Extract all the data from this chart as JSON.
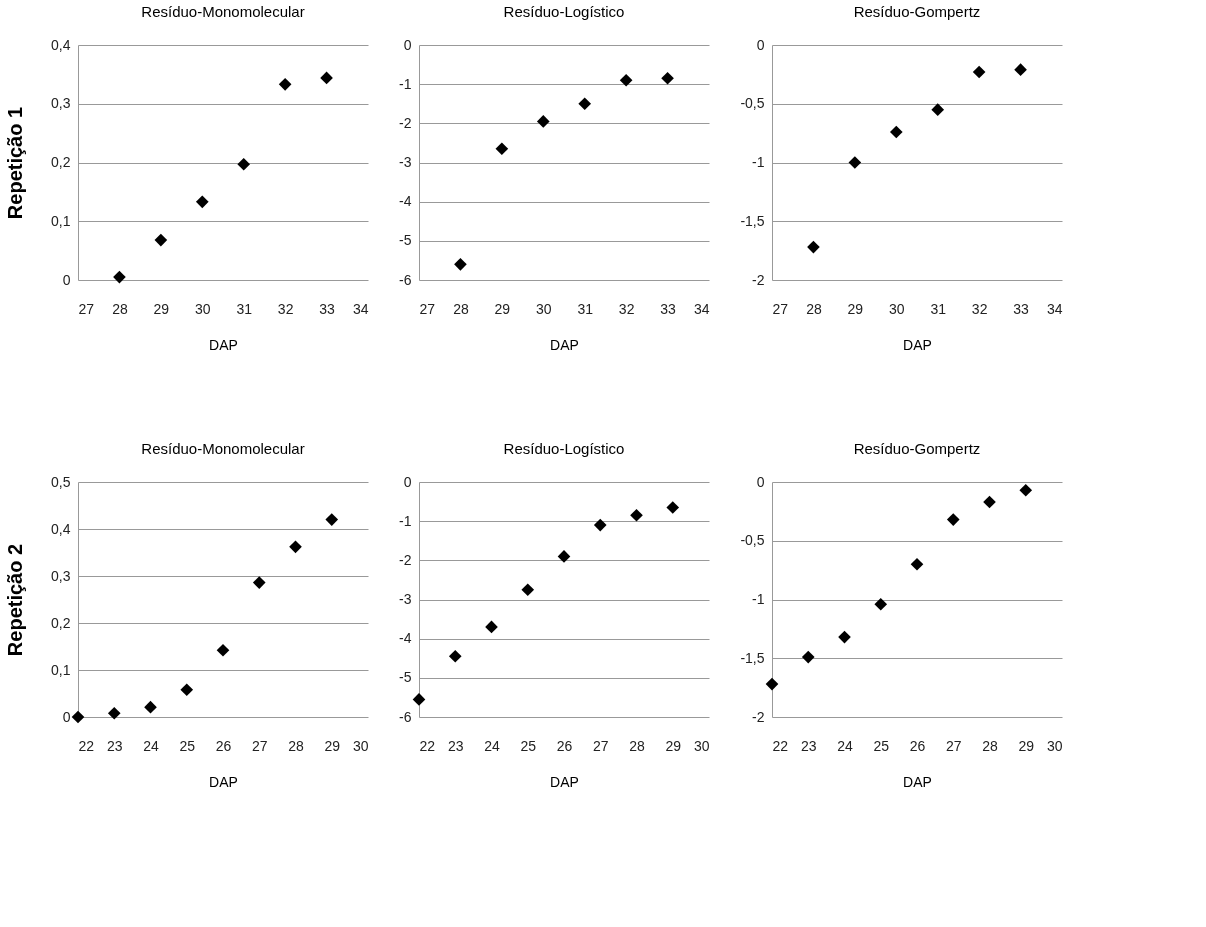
{
  "chart_data": [
    {
      "type": "scatter",
      "title": "Resíduo-Monomolecular",
      "xlabel": "DAP",
      "ylabel": "Repetição 1",
      "x": [
        28,
        29,
        30,
        31,
        32,
        33
      ],
      "series": [
        {
          "color": "#000000",
          "values": [
            0.005,
            0.068,
            0.133,
            0.197,
            0.333,
            0.344
          ]
        }
      ],
      "xlim": [
        27,
        34
      ],
      "xticks": [
        27,
        28,
        29,
        30,
        31,
        32,
        33,
        34
      ],
      "ylim": [
        0,
        0.4
      ],
      "yticks": [
        0,
        {
          "value": 0.1,
          "label": "0,1"
        },
        {
          "value": 0.2,
          "label": "0,2"
        },
        {
          "value": 0.3,
          "label": "0,3"
        },
        {
          "value": 0.4,
          "label": "0,4"
        }
      ],
      "grid": "y",
      "marker": "diamond"
    },
    {
      "type": "scatter",
      "title": "Resíduo-Logístico",
      "xlabel": "DAP",
      "x": [
        28,
        29,
        30,
        31,
        32,
        33
      ],
      "series": [
        {
          "color": "#000000",
          "values": [
            -5.6,
            -2.65,
            -1.95,
            -1.5,
            -0.9,
            -0.85
          ]
        }
      ],
      "xlim": [
        27,
        34
      ],
      "xticks": [
        27,
        28,
        29,
        30,
        31,
        32,
        33,
        34
      ],
      "ylim": [
        -6,
        0
      ],
      "yticks": [
        -6,
        -5,
        -4,
        -3,
        -2,
        -1,
        0
      ],
      "grid": "y",
      "marker": "diamond"
    },
    {
      "type": "scatter",
      "title": "Resíduo-Gompertz",
      "xlabel": "DAP",
      "x": [
        28,
        29,
        30,
        31,
        32,
        33
      ],
      "series": [
        {
          "color": "#000000",
          "values": [
            -1.72,
            -1.0,
            -0.74,
            -0.55,
            -0.23,
            -0.21
          ]
        }
      ],
      "xlim": [
        27,
        34
      ],
      "xticks": [
        27,
        28,
        29,
        30,
        31,
        32,
        33,
        34
      ],
      "ylim": [
        -2,
        0
      ],
      "yticks": [
        -2,
        {
          "value": -1.5,
          "label": "-1,5"
        },
        -1,
        {
          "value": -0.5,
          "label": "-0,5"
        },
        0
      ],
      "grid": "y",
      "marker": "diamond"
    },
    {
      "type": "scatter",
      "title": "Resíduo-Monomolecular",
      "xlabel": "DAP",
      "ylabel": "Repetição 2",
      "x": [
        22,
        23,
        24,
        25,
        26,
        27,
        28,
        29
      ],
      "series": [
        {
          "color": "#000000",
          "values": [
            0.0,
            0.008,
            0.021,
            0.058,
            0.142,
            0.286,
            0.362,
            0.42
          ]
        }
      ],
      "xlim": [
        22,
        30
      ],
      "xticks": [
        22,
        23,
        24,
        25,
        26,
        27,
        28,
        29,
        30
      ],
      "ylim": [
        0,
        0.5
      ],
      "yticks": [
        0,
        {
          "value": 0.1,
          "label": "0,1"
        },
        {
          "value": 0.2,
          "label": "0,2"
        },
        {
          "value": 0.3,
          "label": "0,3"
        },
        {
          "value": 0.4,
          "label": "0,4"
        },
        {
          "value": 0.5,
          "label": "0,5"
        }
      ],
      "grid": "y",
      "marker": "diamond"
    },
    {
      "type": "scatter",
      "title": "Resíduo-Logístico",
      "xlabel": "DAP",
      "x": [
        22,
        23,
        24,
        25,
        26,
        27,
        28,
        29
      ],
      "series": [
        {
          "color": "#000000",
          "values": [
            -5.55,
            -4.45,
            -3.7,
            -2.75,
            -1.9,
            -1.1,
            -0.85,
            -0.65
          ]
        }
      ],
      "xlim": [
        22,
        30
      ],
      "xticks": [
        22,
        23,
        24,
        25,
        26,
        27,
        28,
        29,
        30
      ],
      "ylim": [
        -6,
        0
      ],
      "yticks": [
        -6,
        -5,
        -4,
        -3,
        -2,
        -1,
        0
      ],
      "grid": "y",
      "marker": "diamond"
    },
    {
      "type": "scatter",
      "title": "Resíduo-Gompertz",
      "xlabel": "DAP",
      "x": [
        22,
        23,
        24,
        25,
        26,
        27,
        28,
        29
      ],
      "series": [
        {
          "color": "#000000",
          "values": [
            -1.72,
            -1.49,
            -1.32,
            -1.04,
            -0.7,
            -0.32,
            -0.17,
            -0.07
          ]
        }
      ],
      "xlim": [
        22,
        30
      ],
      "xticks": [
        22,
        23,
        24,
        25,
        26,
        27,
        28,
        29,
        30
      ],
      "ylim": [
        -2,
        0
      ],
      "yticks": [
        -2,
        {
          "value": -1.5,
          "label": "-1,5"
        },
        -1,
        {
          "value": -0.5,
          "label": "-0,5"
        },
        0
      ],
      "grid": "y",
      "marker": "diamond"
    }
  ]
}
